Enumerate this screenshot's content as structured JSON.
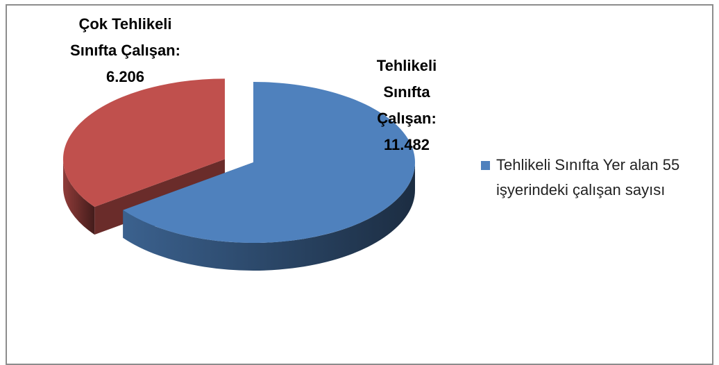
{
  "chart_data": {
    "type": "pie3d",
    "series": [
      {
        "name": "Tehlikeli Sınıfta Yer alan 55 işyerindeki çalışan sayısı",
        "color": "#4f81bd",
        "values": [
          11482,
          6206
        ],
        "value_labels": [
          "Tehlikeli Sınıfta Çalışan: 11.482",
          "Çok Tehlikeli Sınıfta Çalışan: 6.206"
        ],
        "colors": [
          "#4f81bd",
          "#c0504d"
        ]
      }
    ],
    "legend": "right"
  }
}
